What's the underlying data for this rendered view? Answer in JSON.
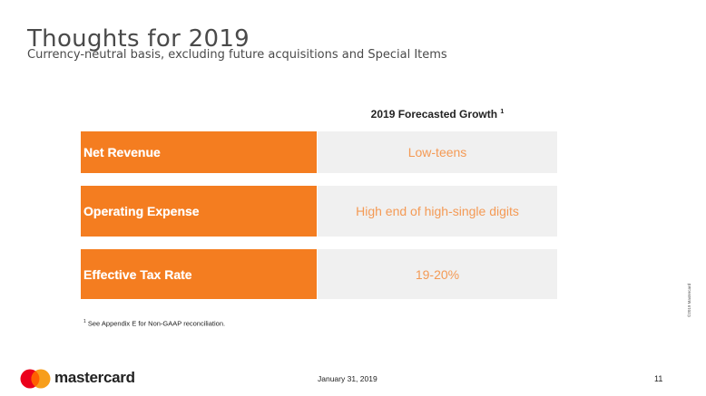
{
  "slide": {
    "title": "Thoughts for 2019",
    "subtitle": "Currency-neutral basis, excluding future acquisitions and Special Items",
    "column_header": "2019 Forecasted Growth",
    "column_header_sup": "1",
    "rows": [
      {
        "label": "Net Revenue",
        "value": "Low-teens"
      },
      {
        "label": "Operating Expense",
        "value": "High end of high-single digits"
      },
      {
        "label": "Effective Tax Rate",
        "value": "19-20%"
      }
    ],
    "footnote_sup": "1",
    "footnote": "See Appendix E for Non-GAAP reconciliation."
  },
  "footer": {
    "brand": "mastercard",
    "date": "January 31, 2019",
    "page_number": "11",
    "copyright": "©2019 Mastercard"
  },
  "colors": {
    "accent_orange": "#f47d20",
    "value_text": "#f49a55",
    "value_bg": "#f0f0f0",
    "logo_red": "#eb001b",
    "logo_yellow": "#f79e1b",
    "logo_overlap": "#ff5f00"
  }
}
